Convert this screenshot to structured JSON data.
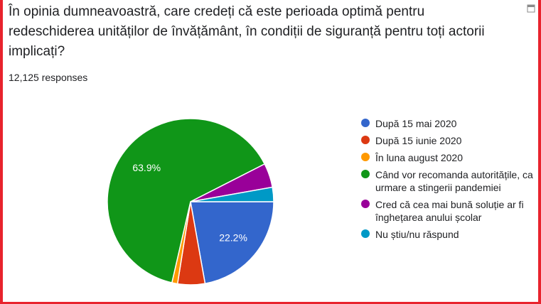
{
  "question": "În opinia dumneavoastră, care credeți că este perioada optimă pentru redeschiderea unităților de învățământ, în condiții de siguranță pentru toți actorii implicați?",
  "responses": "12,125 responses",
  "chart_data": {
    "type": "pie",
    "series": [
      {
        "label": "După 15 mai 2020",
        "value": 22.2,
        "color": "#3366cc",
        "data_label": "22.2%"
      },
      {
        "label": "După 15 iunie 2020",
        "value": 5.3,
        "color": "#dc3912",
        "data_label": ""
      },
      {
        "label": "În luna august 2020",
        "value": 1.1,
        "color": "#ff9900",
        "data_label": ""
      },
      {
        "label": "Când vor recomanda autoritățile, ca urmare a stingerii pandemiei",
        "value": 63.9,
        "color": "#109618",
        "data_label": "63.9%"
      },
      {
        "label": "Cred că cea mai bună soluție ar fi înghețarea anului școlar",
        "value": 4.7,
        "color": "#990099",
        "data_label": ""
      },
      {
        "label": "Nu știu/nu răspund",
        "value": 2.8,
        "color": "#0099c6",
        "data_label": ""
      }
    ],
    "start_direction": "3-o-clock",
    "rotation": "clockwise",
    "legend_position": "right"
  },
  "icons": {
    "corner": "window-icon"
  }
}
